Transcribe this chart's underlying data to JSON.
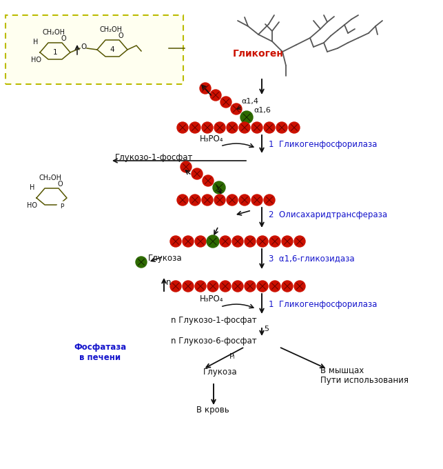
{
  "bg_color": "#ffffff",
  "red_color": "#cc1100",
  "green_color": "#2d6a00",
  "blue_text_color": "#1414cc",
  "dark_text": "#111111",
  "yellow_box_color": "#fffff0",
  "yellow_box_edge": "#bbbb00",
  "title": "Гликоген",
  "enzyme1": "1  Гликогенфосфорилаза",
  "enzyme2": "2  Олисахаридтрансфераза",
  "enzyme3": "3  α1,6-гликозидаза",
  "enzyme1b": "1  Гликогенфосфорилаза",
  "label_a14": "α1,4",
  "label_a16": "α1,6",
  "label_h3po4_1": "H₃PO₄",
  "label_glucoso1": "Глукозо-1-фосфат",
  "label_glucosa_free": "Глукоза",
  "label_h3po4_2": "H₃PO₄",
  "label_n": "n",
  "label_ngluc1": "n Глукозо-1-фосфат",
  "label_5": "5",
  "label_ngluc6": "n Глукозо-6-фосфат",
  "label_fosfataza": "Фосфатаза\nв печени",
  "label_pi": "Pᵢ",
  "label_glucosa2": "Глукоза",
  "label_vkrov": "В кровь",
  "label_vmyshcah": "В мышцах",
  "label_puti": "Пути использования"
}
